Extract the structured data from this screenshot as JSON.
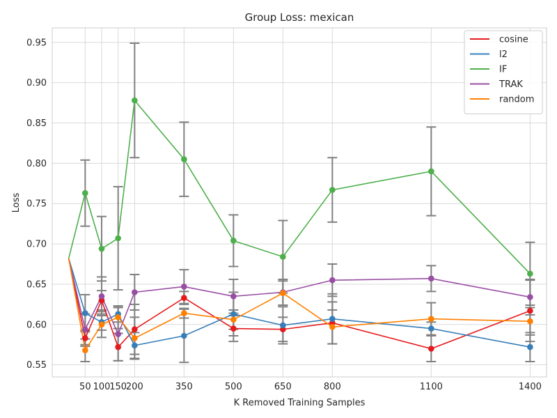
{
  "chart_data": {
    "type": "line",
    "title": "Group Loss: mexican",
    "xlabel": "K Removed Training Samples",
    "ylabel": "Loss",
    "x": [
      0,
      50,
      100,
      150,
      200,
      350,
      500,
      650,
      800,
      1100,
      1400
    ],
    "xticks": [
      50,
      100,
      150,
      200,
      350,
      500,
      650,
      800,
      1100,
      1400
    ],
    "xtick_labels": [
      "50",
      "100",
      "150",
      "200",
      "350",
      "500",
      "650",
      "800",
      "1100",
      "1400"
    ],
    "xlim": [
      -50,
      1450
    ],
    "ylim": [
      0.535,
      0.968
    ],
    "yticks": [
      0.55,
      0.6,
      0.65,
      0.7,
      0.75,
      0.8,
      0.85,
      0.9,
      0.95
    ],
    "ytick_labels": [
      "0.55",
      "0.60",
      "0.65",
      "0.70",
      "0.75",
      "0.80",
      "0.85",
      "0.90",
      "0.95"
    ],
    "grid": true,
    "legend_position": "top-right",
    "errorbar_color": "#808080",
    "series": [
      {
        "name": "cosine",
        "color": "#e41a1c",
        "values": [
          0.682,
          0.583,
          0.63,
          0.572,
          0.594,
          0.633,
          0.595,
          0.594,
          0.602,
          0.57,
          0.617
        ],
        "errors": [
          null,
          0.01,
          0.012,
          0.017,
          0.031,
          0.008,
          0.016,
          0.015,
          0.026,
          0.016,
          0.038
        ]
      },
      {
        "name": "l2",
        "color": "#377eb8",
        "values": [
          0.682,
          0.614,
          0.603,
          0.613,
          0.574,
          0.586,
          0.613,
          0.599,
          0.607,
          0.595,
          0.572
        ],
        "errors": [
          null,
          0.023,
          0.01,
          0.01,
          0.016,
          0.033,
          0.027,
          0.023,
          0.031,
          0.008,
          0.018
        ]
      },
      {
        "name": "IF",
        "color": "#4daf4a",
        "values": [
          0.682,
          0.763,
          0.694,
          0.707,
          0.878,
          0.805,
          0.704,
          0.684,
          0.767,
          0.79,
          0.663
        ],
        "errors": [
          null,
          0.041,
          0.04,
          0.064,
          0.071,
          0.046,
          0.032,
          0.045,
          0.04,
          0.055,
          0.039
        ]
      },
      {
        "name": "TRAK",
        "color": "#984ea3",
        "values": [
          0.682,
          0.594,
          0.635,
          0.588,
          0.64,
          0.647,
          0.635,
          0.64,
          0.655,
          0.657,
          0.634
        ],
        "errors": [
          null,
          0.019,
          0.024,
          0.033,
          0.022,
          0.021,
          0.021,
          0.016,
          0.02,
          0.016,
          0.022
        ]
      },
      {
        "name": "random",
        "color": "#ff7f00",
        "values": [
          0.682,
          0.568,
          0.6,
          0.609,
          0.583,
          0.614,
          0.606,
          0.639,
          0.597,
          0.607,
          0.604
        ],
        "errors": [
          null,
          0.014,
          0.016,
          0.014,
          0.026,
          0.006,
          0.012,
          0.015,
          0.021,
          0.02,
          0.017
        ]
      }
    ]
  }
}
